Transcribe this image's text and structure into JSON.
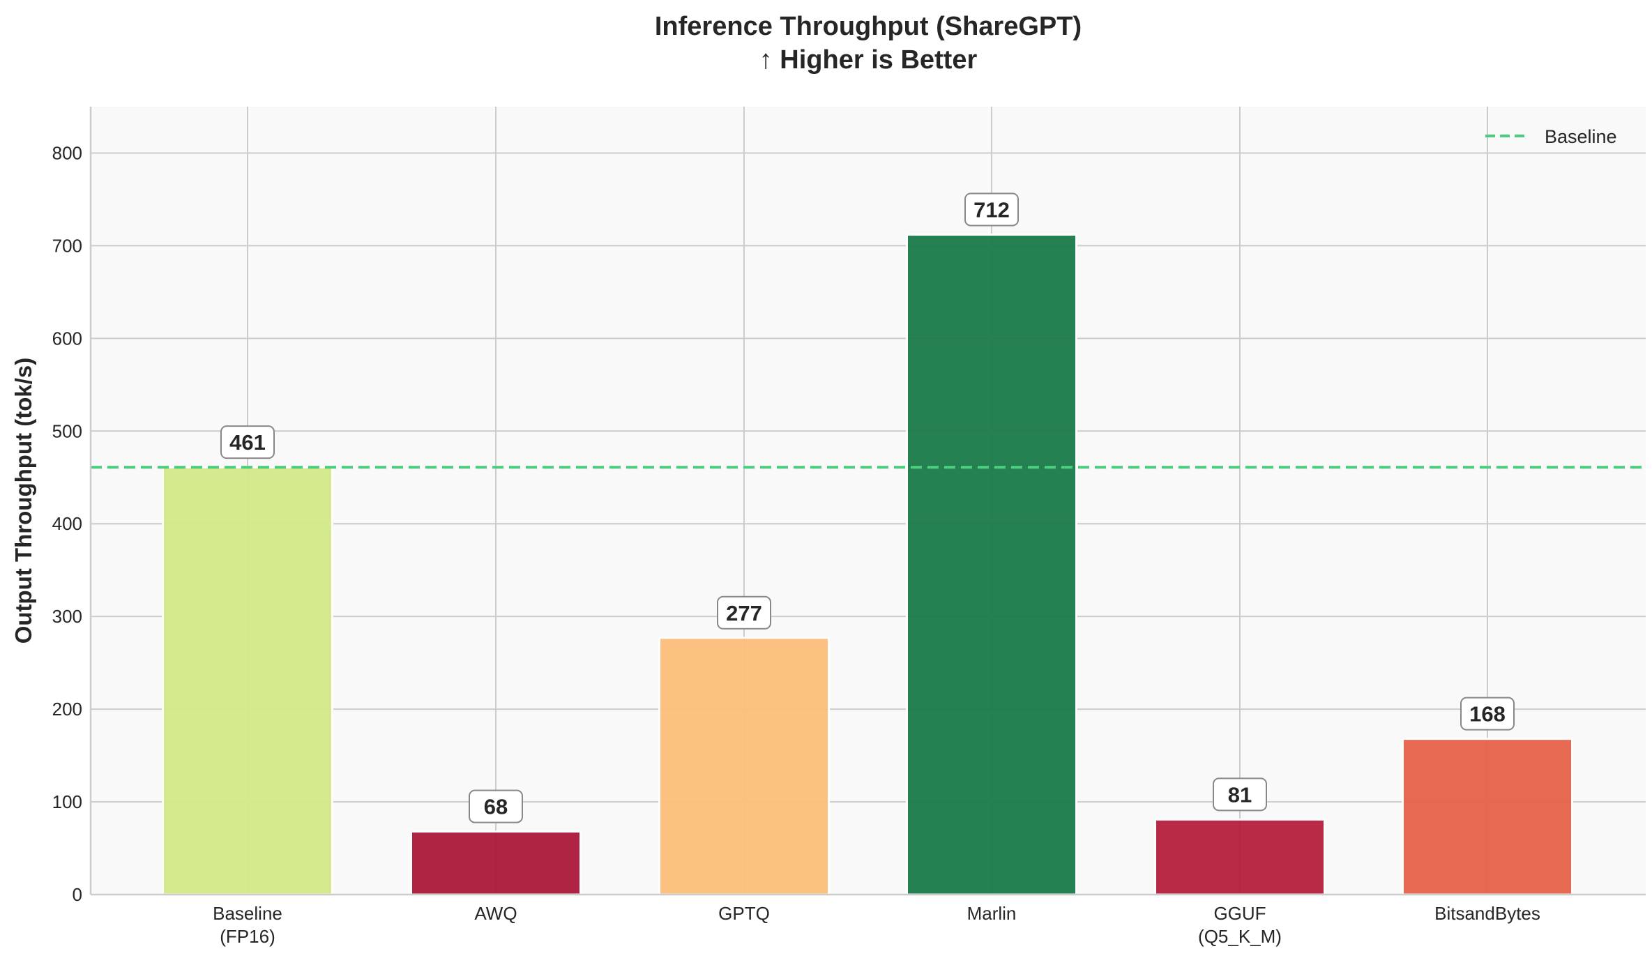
{
  "chart_data": {
    "type": "bar",
    "title": "Inference Throughput (ShareGPT)",
    "subtitle": "↑ Higher is Better",
    "xlabel": "",
    "ylabel": "Output Throughput (tok/s)",
    "ylim": [
      0,
      850
    ],
    "yticks": [
      0,
      100,
      200,
      300,
      400,
      500,
      600,
      700,
      800
    ],
    "grid": true,
    "categories": [
      [
        "Baseline",
        "(FP16)"
      ],
      [
        "AWQ"
      ],
      [
        "GPTQ"
      ],
      [
        "Marlin"
      ],
      [
        "GGUF",
        "(Q5_K_M)"
      ],
      [
        "BitsandBytes"
      ]
    ],
    "values": [
      461,
      68,
      277,
      712,
      81,
      168
    ],
    "data_labels": [
      "461",
      "68",
      "277",
      "712",
      "81",
      "168"
    ],
    "colors": [
      "#d4ea8a",
      "#ad1839",
      "#fdbe7a",
      "#1a7a4a",
      "#b51f3c",
      "#e6624a"
    ],
    "reference_line": {
      "name": "Baseline",
      "value": 461,
      "color": "#4ccd80",
      "style": "dashed"
    },
    "legend": {
      "placement": "top-right",
      "entries": [
        "Baseline"
      ]
    }
  }
}
